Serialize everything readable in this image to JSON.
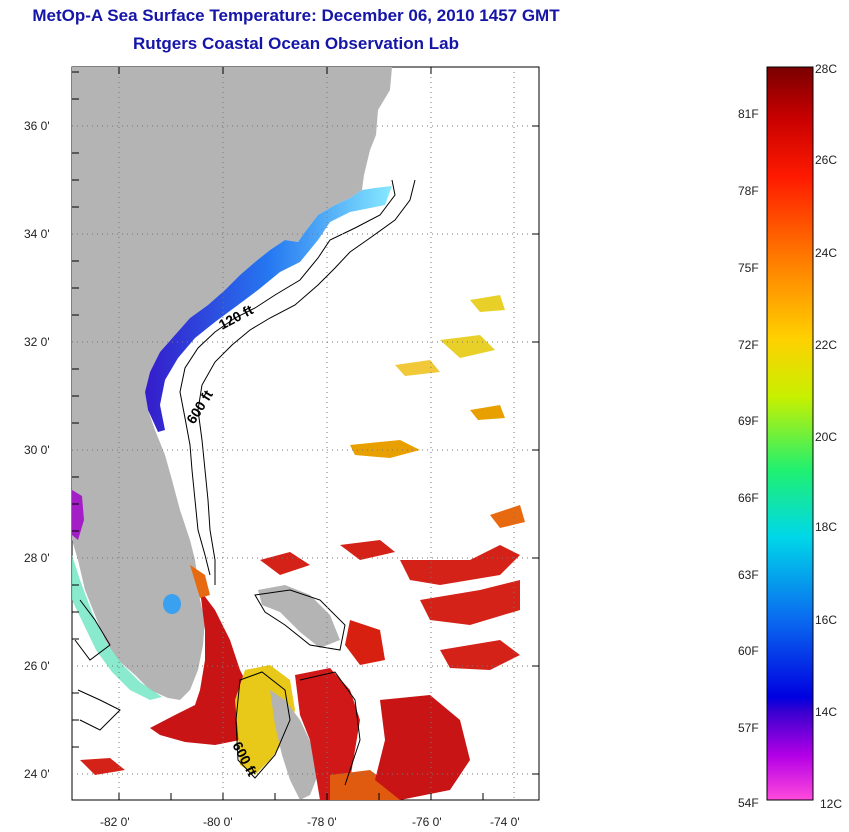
{
  "header": {
    "title": "MetOp-A Sea Surface Temperature:  December 06, 2010 1457 GMT",
    "subtitle": "Rutgers Coastal Ocean Observation Lab"
  },
  "map": {
    "lat_labels": [
      "36 0'",
      "34 0'",
      "32 0'",
      "30 0'",
      "28 0'",
      "26 0'",
      "24 0'"
    ],
    "lon_labels": [
      "-82 0'",
      "-80 0'",
      "-78 0'",
      "-76 0'",
      "-74 0'"
    ],
    "contours": [
      "120 ft",
      "600 ft",
      "600 ft"
    ]
  },
  "colorbar": {
    "celsius": [
      "28C",
      "26C",
      "24C",
      "22C",
      "20C",
      "18C",
      "16C",
      "14C",
      "12C"
    ],
    "fahrenheit": [
      "81F",
      "78F",
      "75F",
      "72F",
      "69F",
      "66F",
      "63F",
      "60F",
      "57F",
      "54F"
    ]
  },
  "colors": {
    "title": "#1515a8",
    "land": "#b4b4b4",
    "warm": "#c81414",
    "cold": "#2832e6"
  }
}
